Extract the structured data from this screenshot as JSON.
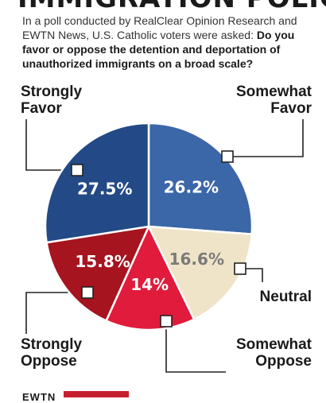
{
  "header": {
    "title": "IMMIGRATION POLICY",
    "intro_text": "In a poll conducted by RealClear Opinion Research and EWTN News, U.S. Catholic voters were asked: ",
    "intro_question": "Do you favor or oppose the detention and deportation of unauthorized immigrants on a broad scale?"
  },
  "chart_data": {
    "type": "pie",
    "title": "IMMIGRATION POLICY",
    "slices": [
      {
        "key": "somewhat_favor",
        "label_lines": [
          "Somewhat",
          "Favor"
        ],
        "value": 26.2,
        "display": "26.2%",
        "color": "#3b66a8",
        "text_color": "#ffffff"
      },
      {
        "key": "neutral",
        "label_lines": [
          "Neutral"
        ],
        "value": 16.6,
        "display": "16.6%",
        "color": "#efe4c8",
        "text_color": "#7a7a7a"
      },
      {
        "key": "somewhat_oppose",
        "label_lines": [
          "Somewhat",
          "Oppose"
        ],
        "value": 14.0,
        "display": "14%",
        "color": "#e01b3c",
        "text_color": "#ffffff"
      },
      {
        "key": "strongly_oppose",
        "label_lines": [
          "Strongly",
          "Oppose"
        ],
        "value": 15.8,
        "display": "15.8%",
        "color": "#a5141f",
        "text_color": "#ffffff"
      },
      {
        "key": "strongly_favor",
        "label_lines": [
          "Strongly",
          "Favor"
        ],
        "value": 27.5,
        "display": "27.5%",
        "color": "#234a86",
        "text_color": "#ffffff"
      }
    ],
    "start_angle_deg": 0,
    "direction": "clockwise",
    "legend": "callouts"
  },
  "footer": {
    "logo_text": "EWTN"
  }
}
